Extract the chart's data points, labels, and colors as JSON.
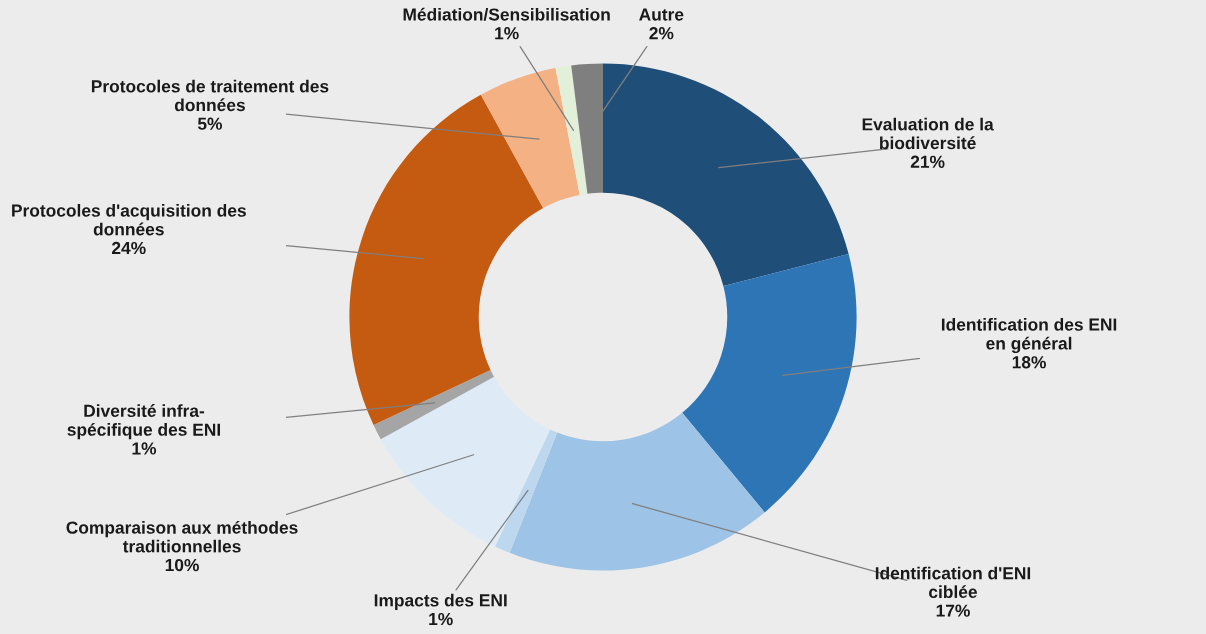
{
  "chart_data": {
    "type": "donut",
    "categories": [
      "Evaluation de la\nbiodiversité",
      "Identification des ENI\nen général",
      "Identification d'ENI\nciblée",
      "Impacts des ENI",
      "Comparaison aux méthodes\ntraditionnelles",
      "Diversité infra-\nspécifique des ENI",
      "Protocoles d'acquisition des\ndonnées",
      "Protocoles de traitement des\ndonnées",
      "Médiation/Sensibilisation",
      "Autre"
    ],
    "values": [
      21,
      18,
      17,
      1,
      10,
      1,
      24,
      5,
      1,
      2
    ],
    "value_labels": [
      "21%",
      "18%",
      "17%",
      "1%",
      "10%",
      "1%",
      "24%",
      "5%",
      "1%",
      "2%"
    ],
    "colors": [
      "#1f4e79",
      "#2e75b6",
      "#9dc3e6",
      "#bdd7ee",
      "#deebf7",
      "#a5a5a5",
      "#c55a11",
      "#f4b183",
      "#e2f0d9",
      "#7f7f7f"
    ],
    "legend": false
  }
}
